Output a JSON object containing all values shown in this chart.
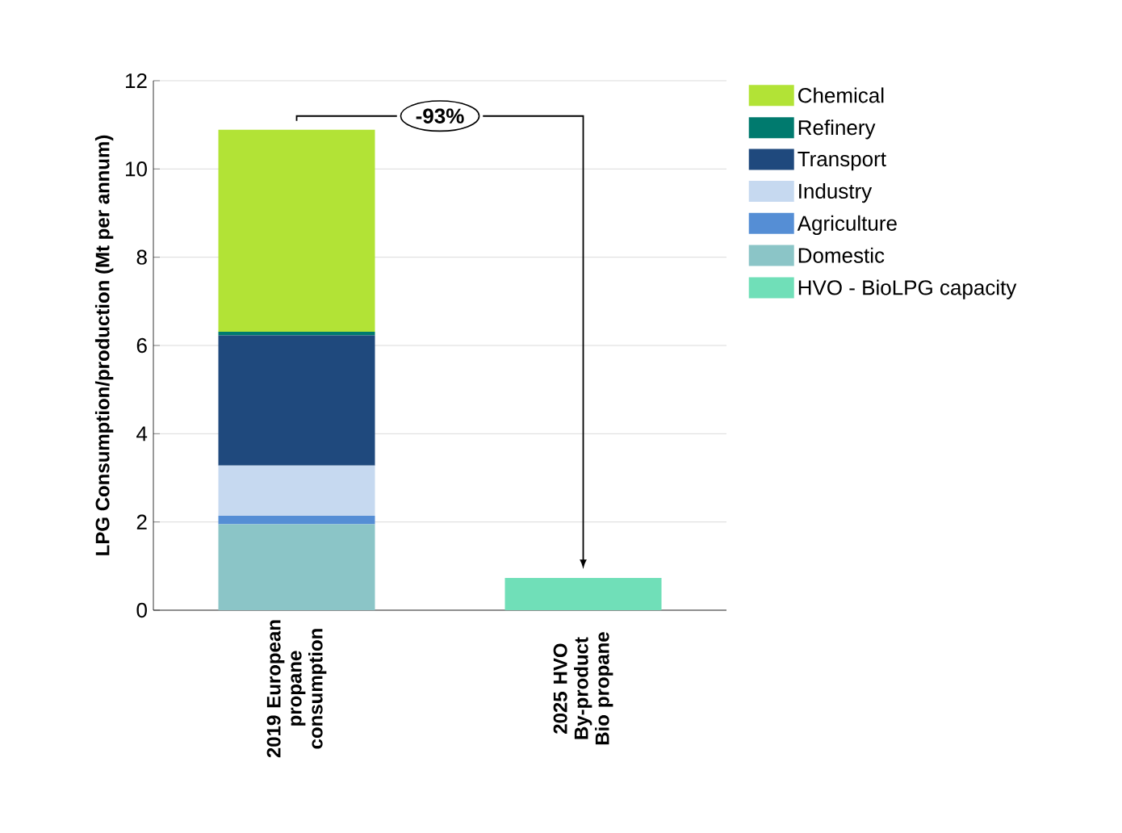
{
  "chart_data": {
    "type": "bar",
    "stacked": true,
    "ylabel": "LPG Consumption/production (Mt per annum)",
    "categories": [
      "2019 European propane consumption",
      "2025 HVO By-product Bio propane"
    ],
    "series": [
      {
        "name": "HVO - BioLPG capacity",
        "color": "#70dfb8",
        "values": [
          null,
          0.73
        ]
      },
      {
        "name": "Domestic",
        "color": "#8bc5c7",
        "values": [
          1.95,
          null
        ]
      },
      {
        "name": "Agriculture",
        "color": "#558ed5",
        "values": [
          0.19,
          null
        ]
      },
      {
        "name": "Industry",
        "color": "#c6d9f0",
        "values": [
          1.14,
          null
        ]
      },
      {
        "name": "Transport",
        "color": "#1f497d",
        "values": [
          2.95,
          null
        ]
      },
      {
        "name": "Refinery",
        "color": "#007a6e",
        "values": [
          0.08,
          null
        ]
      },
      {
        "name": "Chemical",
        "color": "#b2e336",
        "values": [
          4.58,
          null
        ]
      }
    ],
    "ylim": [
      0,
      12
    ],
    "yticks": [
      0,
      2,
      4,
      6,
      8,
      10,
      12
    ],
    "grid": "y",
    "legend": "right",
    "annotations": [
      "-93%"
    ]
  }
}
